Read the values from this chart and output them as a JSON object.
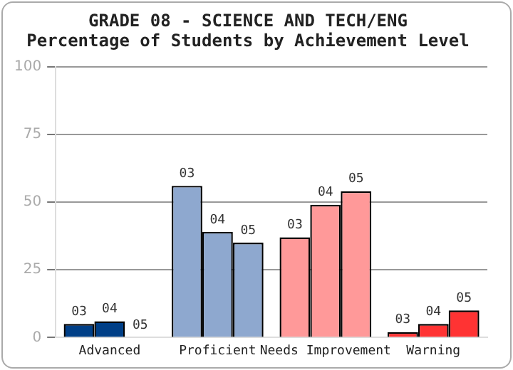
{
  "chart_data": {
    "type": "bar",
    "title": "GRADE 08 - SCIENCE AND TECH/ENG",
    "subtitle": "Percentage of Students by Achievement Level",
    "categories": [
      "Advanced",
      "Proficient",
      "Needs Improvement",
      "Warning"
    ],
    "series": [
      {
        "name": "03",
        "colors": [
          "#003f87",
          "#8ea8cf",
          "#ff9999",
          "#ff3333"
        ],
        "values": [
          5,
          56,
          37,
          2
        ]
      },
      {
        "name": "04",
        "colors": [
          "#003f87",
          "#8ea8cf",
          "#ff9999",
          "#ff3333"
        ],
        "values": [
          6,
          39,
          49,
          5
        ]
      },
      {
        "name": "05",
        "colors": [
          "#003f87",
          "#8ea8cf",
          "#ff9999",
          "#ff3333"
        ],
        "values": [
          0,
          35,
          54,
          10
        ]
      }
    ],
    "ylim": [
      0,
      100
    ],
    "yticks": [
      0,
      25,
      50,
      75,
      100
    ],
    "grid": "y",
    "legend": false
  }
}
